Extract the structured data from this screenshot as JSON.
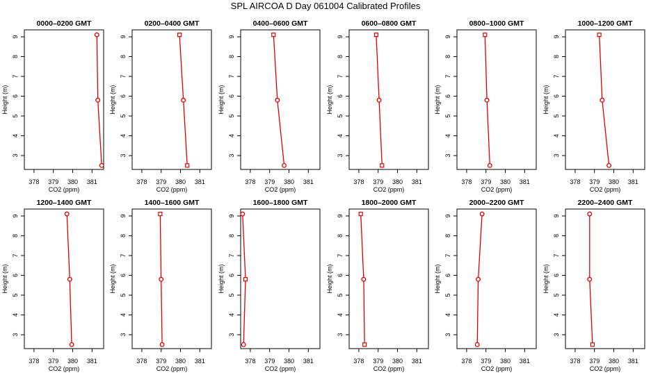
{
  "page": {
    "title": "SPL AIRCOA D  Day 061004  Calibrated Profiles"
  },
  "colors": {
    "series": "#e00000",
    "axis": "#000000",
    "background": "#ffffff"
  },
  "chart_data": [
    {
      "type": "line",
      "title": "0000–0200 GMT",
      "xlabel": "CO2 (ppm)",
      "ylabel": "Height (m)",
      "xlim": [
        377.5,
        381.6
      ],
      "ylim": [
        2.3,
        9.35
      ],
      "xticks": [
        378,
        379,
        380,
        381
      ],
      "yticks": [
        3,
        4,
        5,
        6,
        7,
        8,
        9
      ],
      "grid": false,
      "series": [
        {
          "x": [
            381.25,
            381.3,
            381.5
          ],
          "y": [
            9.1,
            5.8,
            2.5
          ],
          "markers": [
            "o",
            "o",
            "o"
          ]
        }
      ]
    },
    {
      "type": "line",
      "title": "0200–0400 GMT",
      "xlabel": "CO2 (ppm)",
      "ylabel": "Height (m)",
      "xlim": [
        377.5,
        381.6
      ],
      "ylim": [
        2.3,
        9.35
      ],
      "xticks": [
        378,
        379,
        380,
        381
      ],
      "yticks": [
        3,
        4,
        5,
        6,
        7,
        8,
        9
      ],
      "grid": false,
      "series": [
        {
          "x": [
            379.95,
            380.15,
            380.35
          ],
          "y": [
            9.1,
            5.8,
            2.5
          ],
          "markers": [
            "s",
            "o",
            "s"
          ]
        }
      ]
    },
    {
      "type": "line",
      "title": "0400–0600 GMT",
      "xlabel": "CO2 (ppm)",
      "ylabel": "Height (m)",
      "xlim": [
        377.5,
        381.6
      ],
      "ylim": [
        2.3,
        9.35
      ],
      "xticks": [
        378,
        379,
        380,
        381
      ],
      "yticks": [
        3,
        4,
        5,
        6,
        7,
        8,
        9
      ],
      "grid": false,
      "series": [
        {
          "x": [
            379.2,
            379.4,
            379.75
          ],
          "y": [
            9.1,
            5.8,
            2.5
          ],
          "markers": [
            "s",
            "o",
            "o"
          ]
        }
      ]
    },
    {
      "type": "line",
      "title": "0600–0800 GMT",
      "xlabel": "CO2 (ppm)",
      "ylabel": "Height (m)",
      "xlim": [
        377.5,
        381.6
      ],
      "ylim": [
        2.3,
        9.35
      ],
      "xticks": [
        378,
        379,
        380,
        381
      ],
      "yticks": [
        3,
        4,
        5,
        6,
        7,
        8,
        9
      ],
      "grid": false,
      "series": [
        {
          "x": [
            378.9,
            379.05,
            379.2
          ],
          "y": [
            9.1,
            5.8,
            2.5
          ],
          "markers": [
            "s",
            "o",
            "s"
          ]
        }
      ]
    },
    {
      "type": "line",
      "title": "0800–1000 GMT",
      "xlabel": "CO2 (ppm)",
      "ylabel": "Height (m)",
      "xlim": [
        377.5,
        381.6
      ],
      "ylim": [
        2.3,
        9.35
      ],
      "xticks": [
        378,
        379,
        380,
        381
      ],
      "yticks": [
        3,
        4,
        5,
        6,
        7,
        8,
        9
      ],
      "grid": false,
      "series": [
        {
          "x": [
            378.95,
            379.05,
            379.2
          ],
          "y": [
            9.1,
            5.8,
            2.5
          ],
          "markers": [
            "s",
            "o",
            "o"
          ]
        }
      ]
    },
    {
      "type": "line",
      "title": "1000–1200 GMT",
      "xlabel": "CO2 (ppm)",
      "ylabel": "Height (m)",
      "xlim": [
        377.5,
        381.6
      ],
      "ylim": [
        2.3,
        9.35
      ],
      "xticks": [
        378,
        379,
        380,
        381
      ],
      "yticks": [
        3,
        4,
        5,
        6,
        7,
        8,
        9
      ],
      "grid": false,
      "series": [
        {
          "x": [
            379.25,
            379.4,
            379.75
          ],
          "y": [
            9.1,
            5.8,
            2.5
          ],
          "markers": [
            "s",
            "o",
            "o"
          ]
        }
      ]
    },
    {
      "type": "line",
      "title": "1200–1400 GMT",
      "xlabel": "CO2 (ppm)",
      "ylabel": "Height (m)",
      "xlim": [
        377.5,
        381.6
      ],
      "ylim": [
        2.3,
        9.35
      ],
      "xticks": [
        378,
        379,
        380,
        381
      ],
      "yticks": [
        3,
        4,
        5,
        6,
        7,
        8,
        9
      ],
      "grid": false,
      "series": [
        {
          "x": [
            379.7,
            379.85,
            379.95
          ],
          "y": [
            9.1,
            5.8,
            2.5
          ],
          "markers": [
            "o",
            "o",
            "o"
          ]
        }
      ]
    },
    {
      "type": "line",
      "title": "1400–1600 GMT",
      "xlabel": "CO2 (ppm)",
      "ylabel": "Height (m)",
      "xlim": [
        377.5,
        381.6
      ],
      "ylim": [
        2.3,
        9.35
      ],
      "xticks": [
        378,
        379,
        380,
        381
      ],
      "yticks": [
        3,
        4,
        5,
        6,
        7,
        8,
        9
      ],
      "grid": false,
      "series": [
        {
          "x": [
            378.95,
            379.0,
            379.05
          ],
          "y": [
            9.1,
            5.8,
            2.5
          ],
          "markers": [
            "s",
            "o",
            "o"
          ]
        }
      ]
    },
    {
      "type": "line",
      "title": "1600–1800 GMT",
      "xlabel": "CO2 (ppm)",
      "ylabel": "Height (m)",
      "xlim": [
        377.5,
        381.6
      ],
      "ylim": [
        2.3,
        9.35
      ],
      "xticks": [
        378,
        379,
        380,
        381
      ],
      "yticks": [
        3,
        4,
        5,
        6,
        7,
        8,
        9
      ],
      "grid": false,
      "series": [
        {
          "x": [
            377.6,
            377.75,
            377.65
          ],
          "y": [
            9.1,
            5.8,
            2.5
          ],
          "markers": [
            "o",
            "s",
            "o"
          ]
        }
      ]
    },
    {
      "type": "line",
      "title": "1800–2000 GMT",
      "xlabel": "CO2 (ppm)",
      "ylabel": "Height (m)",
      "xlim": [
        377.5,
        381.6
      ],
      "ylim": [
        2.3,
        9.35
      ],
      "xticks": [
        378,
        379,
        380,
        381
      ],
      "yticks": [
        3,
        4,
        5,
        6,
        7,
        8,
        9
      ],
      "grid": false,
      "series": [
        {
          "x": [
            378.1,
            378.25,
            378.3
          ],
          "y": [
            9.1,
            5.8,
            2.5
          ],
          "markers": [
            "s",
            "o",
            "s"
          ]
        }
      ]
    },
    {
      "type": "line",
      "title": "2000–2200 GMT",
      "xlabel": "CO2 (ppm)",
      "ylabel": "Height (m)",
      "xlim": [
        377.5,
        381.6
      ],
      "ylim": [
        2.3,
        9.35
      ],
      "xticks": [
        378,
        379,
        380,
        381
      ],
      "yticks": [
        3,
        4,
        5,
        6,
        7,
        8,
        9
      ],
      "grid": false,
      "series": [
        {
          "x": [
            378.8,
            378.6,
            378.55
          ],
          "y": [
            9.1,
            5.8,
            2.5
          ],
          "markers": [
            "o",
            "o",
            "o"
          ]
        }
      ]
    },
    {
      "type": "line",
      "title": "2200–2400 GMT",
      "xlabel": "CO2 (ppm)",
      "ylabel": "Height (m)",
      "xlim": [
        377.5,
        381.6
      ],
      "ylim": [
        2.3,
        9.35
      ],
      "xticks": [
        378,
        379,
        380,
        381
      ],
      "yticks": [
        3,
        4,
        5,
        6,
        7,
        8,
        9
      ],
      "grid": false,
      "series": [
        {
          "x": [
            378.75,
            378.75,
            378.9
          ],
          "y": [
            9.1,
            5.8,
            2.5
          ],
          "markers": [
            "o",
            "o",
            "s"
          ]
        }
      ]
    }
  ]
}
